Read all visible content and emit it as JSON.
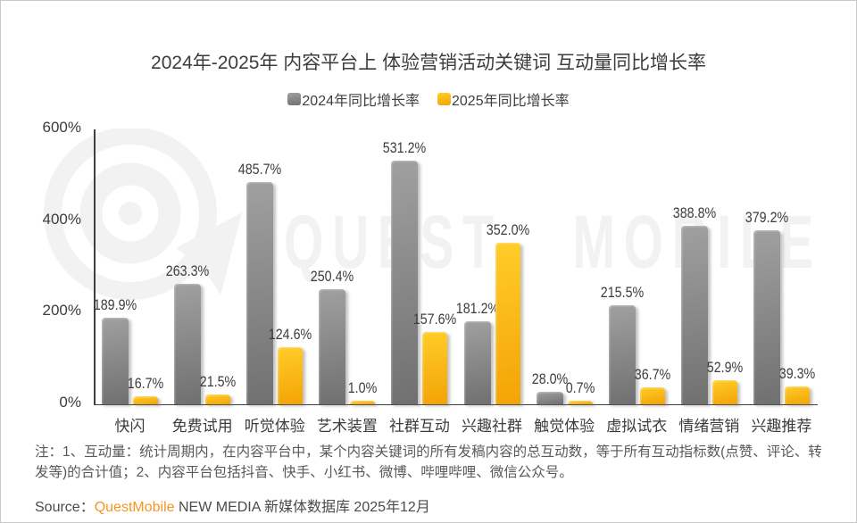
{
  "title": "2024年-2025年 内容平台上 体验营销活动关键词 互动量同比增长率",
  "chart_data": {
    "type": "bar",
    "title": "2024年-2025年 内容平台上 体验营销活动关键词 互动量同比增长率",
    "categories": [
      "快闪",
      "免费试用",
      "听觉体验",
      "艺术装置",
      "社群互动",
      "兴趣社群",
      "触觉体验",
      "虚拟试衣",
      "情绪营销",
      "兴趣推荐"
    ],
    "series": [
      {
        "name": "2024年同比增长率",
        "values": [
          189.9,
          263.3,
          485.7,
          250.4,
          531.2,
          181.2,
          28.0,
          215.5,
          388.8,
          379.2
        ],
        "color_top": "#a0a0a0",
        "color_bottom": "#707070"
      },
      {
        "name": "2025年同比增长率",
        "values": [
          16.7,
          21.5,
          124.6,
          1.0,
          157.6,
          352.0,
          0.7,
          36.7,
          52.9,
          39.3
        ],
        "color_top": "#ffcd29",
        "color_bottom": "#f4a306"
      }
    ],
    "xlabel": "",
    "ylabel": "",
    "ylim": [
      0,
      600
    ],
    "yticks": [
      0,
      200,
      400,
      600
    ],
    "ytick_labels": [
      "0%",
      "200%",
      "400%",
      "600%"
    ],
    "grid": false,
    "legend_position": "top-center",
    "value_label_suffix": "%"
  },
  "legend": [
    {
      "label": "2024年同比增长率",
      "color": "#808080"
    },
    {
      "label": "2025年同比增长率",
      "color": "#FFC000"
    }
  ],
  "watermark": {
    "text": "QUEST MOBILE"
  },
  "note": "注：1、互动量：统计周期内，在内容平台中，某个内容关键词的所有发稿内容的总互动数，等于所有互动指标数(点赞、评论、转发等)的合计值；2、内容平台包括抖音、快手、小红书、微博、哔哩哔哩、微信公众号。",
  "source": {
    "prefix": "Source：",
    "brand": "QuestMobile",
    "suffix": " NEW MEDIA 新媒体数据库 2025年12月"
  }
}
